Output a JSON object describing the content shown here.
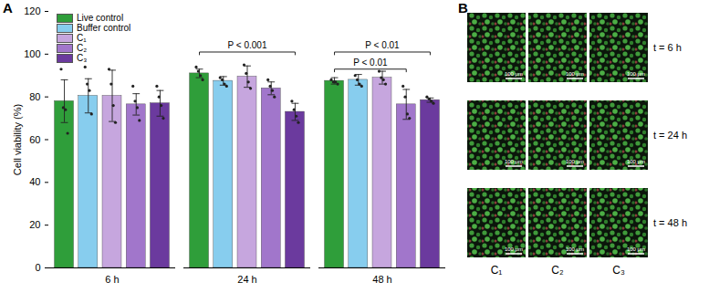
{
  "chart_data": {
    "type": "bar",
    "panel_label": "A",
    "ylabel": "Cell viability (%)",
    "categories": [
      "6 h",
      "24 h",
      "48 h"
    ],
    "ylim": [
      0,
      120
    ],
    "yticks": [
      0,
      20,
      40,
      60,
      80,
      100,
      120
    ],
    "legend": "top-left",
    "series": [
      {
        "name": "Live control",
        "color": "#2f9e3a",
        "values": [
          78,
          91,
          87.5
        ],
        "errors": [
          10,
          2,
          1.5
        ],
        "points": [
          [
            93,
            75,
            74,
            63
          ],
          [
            94,
            92,
            90,
            88
          ],
          [
            88,
            87,
            87,
            86
          ]
        ]
      },
      {
        "name": "Buffer control",
        "color": "#87cdee",
        "values": [
          80.5,
          87.5,
          88
        ],
        "errors": [
          8,
          2,
          2.5
        ],
        "points": [
          [
            94,
            86,
            83,
            72
          ],
          [
            89,
            88,
            86,
            85
          ],
          [
            90,
            88,
            86,
            85
          ]
        ]
      },
      {
        "name": "C₁",
        "color": "#c6a6de",
        "values": [
          80.5,
          89.5,
          89
        ],
        "errors": [
          12,
          5,
          3
        ],
        "points": [
          [
            93,
            86,
            76,
            68
          ],
          [
            95,
            91,
            87,
            84
          ],
          [
            92,
            89,
            88,
            86
          ]
        ]
      },
      {
        "name": "C₂",
        "color": "#a176cb",
        "values": [
          76.5,
          84,
          76.5
        ],
        "errors": [
          5,
          3,
          7
        ],
        "points": [
          [
            85,
            78,
            75,
            69
          ],
          [
            88,
            85,
            83,
            80
          ],
          [
            85,
            80,
            72,
            70
          ]
        ]
      },
      {
        "name": "C₃",
        "color": "#6b3a9e",
        "values": [
          77,
          73,
          78.5
        ],
        "errors": [
          6,
          4,
          1
        ],
        "points": [
          [
            85,
            80,
            76,
            70
          ],
          [
            78,
            74,
            71,
            68
          ],
          [
            80,
            79,
            78,
            77
          ]
        ]
      }
    ],
    "annotations": [
      {
        "text": "P < 0.001",
        "category": "24 h",
        "from": "Live control",
        "to": "C₃",
        "y": 101
      },
      {
        "text": "P < 0.01",
        "category": "48 h",
        "from": "Live control",
        "to": "C₃",
        "y": 101
      },
      {
        "text": "P < 0.01",
        "category": "48 h",
        "from": "Live control",
        "to": "C₂",
        "y": 93
      }
    ]
  },
  "panel_b": {
    "panel_label": "B",
    "columns": [
      "C₁",
      "C₂",
      "C₃"
    ],
    "rows": [
      "t = 6 h",
      "t = 24 h",
      "t = 48 h"
    ],
    "scale_bar": "100 μm"
  }
}
